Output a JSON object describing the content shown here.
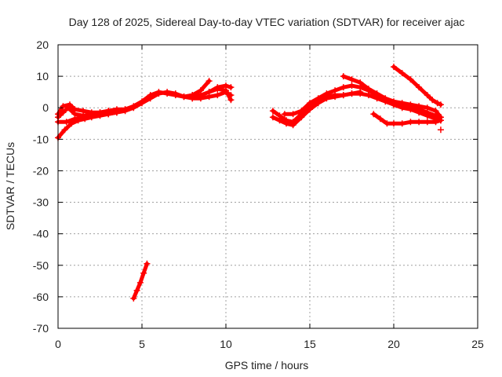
{
  "chart_data": {
    "type": "scatter",
    "title": "Day 128 of 2025, Sidereal Day-to-day VTEC variation (SDTVAR) for receiver ajac",
    "xlabel": "GPS time / hours",
    "ylabel": "SDTVAR / TECUs",
    "xlim": [
      0,
      25
    ],
    "ylim": [
      -70,
      20
    ],
    "xticks": [
      0,
      5,
      10,
      15,
      20,
      25
    ],
    "yticks": [
      -70,
      -60,
      -50,
      -40,
      -30,
      -20,
      -10,
      0,
      10,
      20
    ],
    "grid": true,
    "marker": "+",
    "color": "#ff0000",
    "tracks": [
      {
        "x": [
          0.0,
          0.3,
          0.6,
          1.0,
          1.5,
          2.0,
          2.5,
          3.0,
          3.5,
          4.0,
          4.5,
          5.0,
          5.5,
          6.0,
          6.5,
          7.0,
          7.5,
          8.0,
          8.5,
          9.0
        ],
        "y": [
          -3.0,
          -1.5,
          0.0,
          -2.0,
          -2.5,
          -2.0,
          -1.5,
          -1.0,
          -1.0,
          -0.5,
          0.5,
          2.0,
          4.0,
          5.0,
          4.5,
          4.0,
          3.5,
          4.0,
          5.5,
          8.5
        ]
      },
      {
        "x": [
          0.0,
          0.4,
          0.8,
          1.2,
          1.6,
          2.0,
          2.5,
          3.0,
          3.5,
          4.0,
          4.5,
          5.0,
          5.5,
          6.0,
          6.5,
          7.0,
          7.5,
          8.0
        ],
        "y": [
          -9.5,
          -7.0,
          -5.0,
          -4.0,
          -3.5,
          -3.0,
          -2.5,
          -2.0,
          -1.5,
          -1.0,
          0.0,
          1.5,
          3.0,
          4.5,
          5.0,
          4.5,
          3.5,
          3.0
        ]
      },
      {
        "x": [
          0.0,
          0.3,
          0.7,
          1.0,
          1.5,
          2.0,
          2.5,
          3.0,
          3.5,
          4.0
        ],
        "y": [
          -2.0,
          0.5,
          1.0,
          -0.5,
          -1.0,
          -1.5,
          -1.5,
          -1.0,
          -0.5,
          -0.5
        ]
      },
      {
        "x": [
          0.0,
          0.5,
          1.0,
          1.5,
          2.0,
          2.5,
          3.0,
          3.5
        ],
        "y": [
          -4.5,
          -4.5,
          -3.5,
          -3.0,
          -2.5,
          -2.0,
          -2.0,
          -1.5
        ]
      },
      {
        "x": [
          7.5,
          8.0,
          8.5,
          9.0,
          9.5,
          10.0,
          10.3
        ],
        "y": [
          3.5,
          4.0,
          4.0,
          5.0,
          6.5,
          7.0,
          6.5
        ]
      },
      {
        "x": [
          8.0,
          8.5,
          9.0,
          9.5,
          10.0,
          10.3
        ],
        "y": [
          3.0,
          3.0,
          3.5,
          4.0,
          5.0,
          4.0
        ]
      },
      {
        "x": [
          9.0,
          9.5,
          10.0,
          10.3
        ],
        "y": [
          5.0,
          6.0,
          5.5,
          2.5
        ]
      },
      {
        "x": [
          4.5,
          4.7,
          4.9,
          5.1,
          5.3
        ],
        "y": [
          -60.5,
          -58.0,
          -55.5,
          -52.5,
          -49.5
        ]
      },
      {
        "x": [
          12.8,
          13.2,
          13.6,
          14.0,
          14.5,
          15.0,
          15.5,
          16.0,
          16.5,
          17.0,
          17.5,
          18.0,
          18.5,
          19.0,
          19.5,
          20.0,
          20.5,
          21.0,
          21.5,
          22.0,
          22.5,
          22.8
        ],
        "y": [
          -1.0,
          -2.5,
          -4.0,
          -4.5,
          -2.0,
          1.0,
          2.5,
          3.5,
          4.0,
          4.0,
          4.5,
          4.5,
          4.0,
          3.0,
          2.0,
          1.0,
          0.5,
          0.0,
          -0.5,
          -1.5,
          -2.5,
          -3.0
        ]
      },
      {
        "x": [
          12.8,
          13.2,
          13.6,
          14.0,
          14.5,
          15.0,
          15.5,
          16.0,
          16.5,
          17.0,
          17.5,
          18.0
        ],
        "y": [
          -3.0,
          -4.0,
          -5.0,
          -5.5,
          -3.0,
          -0.5,
          1.5,
          3.0,
          3.5,
          4.0,
          4.5,
          5.0
        ]
      },
      {
        "x": [
          13.5,
          14.0,
          14.5,
          15.0,
          15.5,
          16.0,
          16.5,
          17.0,
          17.5,
          18.0,
          18.5,
          19.0,
          19.5,
          20.0,
          20.5,
          21.0,
          21.5,
          22.0,
          22.5,
          22.8
        ],
        "y": [
          -2.0,
          -2.0,
          -1.0,
          1.5,
          3.0,
          4.5,
          5.5,
          6.5,
          7.0,
          6.5,
          5.5,
          4.0,
          2.5,
          1.0,
          0.0,
          -0.5,
          -1.5,
          -2.5,
          -3.5,
          -4.0
        ]
      },
      {
        "x": [
          17.0,
          17.5,
          18.0,
          18.5,
          19.0,
          19.5,
          20.0,
          20.5,
          21.0,
          21.5,
          22.0,
          22.5,
          22.8
        ],
        "y": [
          10.0,
          9.0,
          8.0,
          6.0,
          4.5,
          3.0,
          2.0,
          1.5,
          1.0,
          0.5,
          0.0,
          -1.0,
          -3.0
        ]
      },
      {
        "x": [
          18.8,
          19.2,
          19.6,
          20.0,
          20.5,
          21.0,
          21.5,
          22.0,
          22.5,
          22.8
        ],
        "y": [
          -2.0,
          -3.5,
          -5.0,
          -5.0,
          -5.0,
          -4.5,
          -4.5,
          -4.5,
          -4.5,
          -4.0
        ]
      },
      {
        "x": [
          20.0,
          20.5,
          21.0,
          21.5,
          22.0,
          22.3,
          22.6,
          22.8
        ],
        "y": [
          13.0,
          11.0,
          9.0,
          6.5,
          4.0,
          2.5,
          1.5,
          1.0
        ]
      },
      {
        "x": [
          22.8
        ],
        "y": [
          -7.0
        ]
      }
    ]
  }
}
